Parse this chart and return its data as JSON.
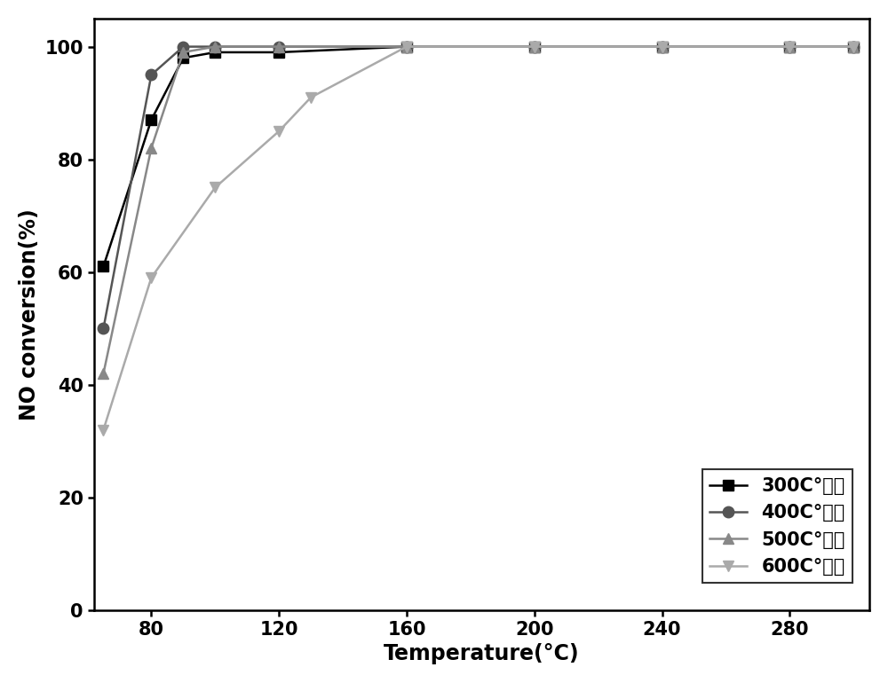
{
  "series": [
    {
      "label": "300C°焚烧",
      "color": "#000000",
      "marker": "s",
      "markersize": 9,
      "linewidth": 1.8,
      "x": [
        65,
        80,
        90,
        100,
        120,
        160,
        200,
        240,
        280,
        300
      ],
      "y": [
        61,
        87,
        98,
        99,
        99,
        100,
        100,
        100,
        100,
        100
      ]
    },
    {
      "label": "400C°焚烧",
      "color": "#555555",
      "marker": "o",
      "markersize": 9,
      "linewidth": 1.8,
      "x": [
        65,
        80,
        90,
        100,
        120,
        160,
        200,
        240,
        280,
        300
      ],
      "y": [
        50,
        95,
        100,
        100,
        100,
        100,
        100,
        100,
        100,
        100
      ]
    },
    {
      "label": "500C°焚烧",
      "color": "#888888",
      "marker": "^",
      "markersize": 9,
      "linewidth": 1.8,
      "x": [
        65,
        80,
        90,
        100,
        120,
        160,
        200,
        240,
        280,
        300
      ],
      "y": [
        42,
        82,
        99,
        100,
        100,
        100,
        100,
        100,
        100,
        100
      ]
    },
    {
      "label": "600C°焚烧",
      "color": "#aaaaaa",
      "marker": "v",
      "markersize": 9,
      "linewidth": 1.8,
      "x": [
        65,
        80,
        100,
        120,
        130,
        160,
        200,
        240,
        280,
        300
      ],
      "y": [
        32,
        59,
        75,
        85,
        91,
        100,
        100,
        100,
        100,
        100
      ]
    }
  ],
  "xlabel": "Temperature(°C)",
  "ylabel": "NO conversion(%)",
  "xlim": [
    62,
    305
  ],
  "ylim": [
    0,
    105
  ],
  "xticks": [
    80,
    120,
    160,
    200,
    240,
    280
  ],
  "yticks": [
    0,
    20,
    40,
    60,
    80,
    100
  ],
  "figsize": [
    10.0,
    7.7
  ],
  "dpi": 100,
  "background_color": "#ffffff",
  "font_size_axis_label": 17,
  "font_size_tick_label": 15,
  "font_size_legend": 15
}
